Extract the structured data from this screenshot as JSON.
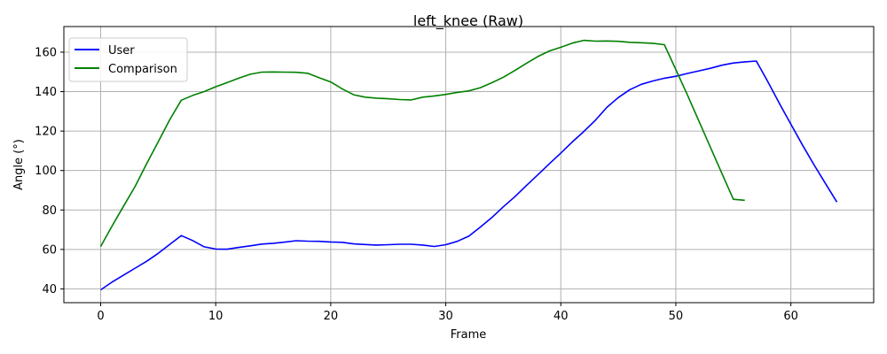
{
  "chart_data": {
    "type": "line",
    "title": "left_knee (Raw)",
    "xlabel": "Frame",
    "ylabel": "Angle (°)",
    "xlim": [
      -3.2,
      67.2
    ],
    "ylim": [
      33,
      173
    ],
    "xticks": [
      0,
      10,
      20,
      30,
      40,
      50,
      60
    ],
    "yticks": [
      40,
      60,
      80,
      100,
      120,
      140,
      160
    ],
    "grid": true,
    "legend_position": "upper-left",
    "series": [
      {
        "name": "User",
        "color": "#0000ff",
        "x": [
          0,
          1,
          2,
          3,
          4,
          5,
          6,
          7,
          8,
          9,
          10,
          11,
          12,
          13,
          14,
          15,
          16,
          17,
          18,
          19,
          20,
          21,
          22,
          23,
          24,
          25,
          26,
          27,
          28,
          29,
          30,
          31,
          32,
          33,
          34,
          35,
          36,
          37,
          38,
          39,
          40,
          41,
          42,
          43,
          44,
          45,
          46,
          47,
          48,
          49,
          50,
          51,
          52,
          53,
          54,
          55,
          56,
          57,
          58,
          59,
          60,
          61,
          62,
          63,
          64
        ],
        "y": [
          39.5,
          43.5,
          47,
          50.5,
          54,
          58,
          62.5,
          67,
          64.5,
          61.3,
          60.2,
          60.1,
          61,
          61.8,
          62.7,
          63.1,
          63.7,
          64.4,
          64.2,
          64.1,
          63.8,
          63.6,
          62.8,
          62.5,
          62.2,
          62.4,
          62.6,
          62.6,
          62.2,
          61.5,
          62.4,
          64.1,
          66.7,
          71.3,
          76.1,
          81.6,
          86.7,
          92.3,
          97.8,
          103.4,
          108.9,
          114.5,
          119.8,
          125.5,
          132,
          137,
          141,
          143.7,
          145.4,
          146.8,
          147.8,
          149.2,
          150.5,
          151.8,
          153.4,
          154.5,
          155.1,
          155.5,
          145,
          134,
          123.5,
          113,
          103,
          93.5,
          84
        ]
      },
      {
        "name": "Comparison",
        "color": "#008000",
        "x": [
          0,
          1,
          2,
          3,
          4,
          5,
          6,
          7,
          8,
          9,
          10,
          11,
          12,
          13,
          14,
          15,
          16,
          17,
          18,
          19,
          20,
          21,
          22,
          23,
          24,
          25,
          26,
          27,
          28,
          29,
          30,
          31,
          32,
          33,
          34,
          35,
          36,
          37,
          38,
          39,
          40,
          41,
          42,
          43,
          44,
          45,
          46,
          47,
          48,
          49,
          50,
          51,
          52,
          53,
          54,
          55,
          56
        ],
        "y": [
          61.5,
          72,
          82,
          92,
          103.5,
          114.5,
          125.7,
          135.6,
          138.1,
          140,
          142.5,
          144.6,
          146.8,
          148.8,
          149.9,
          150,
          149.9,
          149.8,
          149.3,
          147,
          144.9,
          141.4,
          138.4,
          137.2,
          136.7,
          136.4,
          136,
          135.8,
          137.2,
          137.8,
          138.6,
          139.6,
          140.4,
          142,
          144.5,
          147.3,
          150.7,
          154.3,
          157.8,
          160.6,
          162.5,
          164.6,
          166,
          165.6,
          165.7,
          165.5,
          165,
          164.8,
          164.5,
          163.8,
          151.2,
          138.4,
          125.1,
          111.9,
          98.6,
          85.4,
          84.9
        ]
      }
    ]
  }
}
